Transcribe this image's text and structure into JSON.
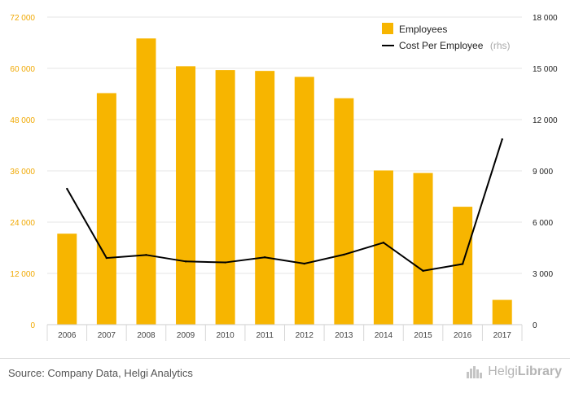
{
  "chart_data": {
    "type": "bar",
    "categories": [
      "2006",
      "2007",
      "2008",
      "2009",
      "2010",
      "2011",
      "2012",
      "2013",
      "2014",
      "2015",
      "2016",
      "2017"
    ],
    "series": [
      {
        "name": "Employees",
        "kind": "bar",
        "axis": "left",
        "color": "#f7b500",
        "values": [
          21300,
          54200,
          67000,
          60500,
          59600,
          59400,
          58000,
          53000,
          36100,
          35500,
          27600,
          5800
        ]
      },
      {
        "name": "Cost Per Employee",
        "name_suffix": "(rhs)",
        "kind": "line",
        "axis": "right",
        "color": "#000000",
        "values": [
          7950,
          3900,
          4080,
          3700,
          3640,
          3940,
          3570,
          4100,
          4800,
          3150,
          3550,
          10850
        ]
      }
    ],
    "y_left": {
      "ticks": [
        "0",
        "12 000",
        "24 000",
        "36 000",
        "48 000",
        "60 000",
        "72 000"
      ],
      "ylim": [
        0,
        72000
      ]
    },
    "y_right": {
      "ticks": [
        "0",
        "3 000",
        "6 000",
        "9 000",
        "12 000",
        "15 000",
        "18 000"
      ],
      "ylim": [
        0,
        18000
      ]
    },
    "legend": {
      "placement": "top-right"
    },
    "grid": true
  },
  "footer": {
    "source": "Source: Company Data, Helgi Analytics",
    "logo_main": "Helgi",
    "logo_bold": "Library"
  },
  "colors": {
    "accent": "#f7b500",
    "line": "#000000",
    "grid": "#e6e6e6",
    "left_axis_text": "#f0a800"
  }
}
